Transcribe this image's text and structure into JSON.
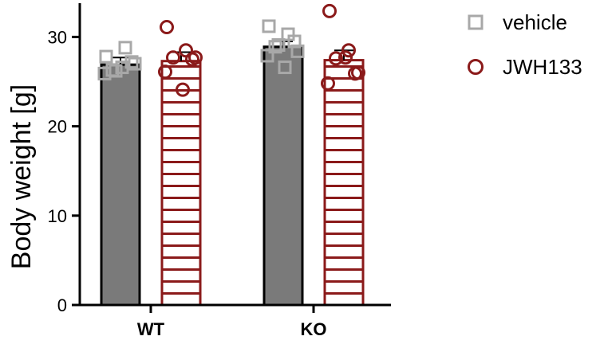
{
  "chart_data": {
    "type": "bar",
    "ylabel": "Body weight [g]",
    "xlabel": "",
    "ylim": [
      0,
      33
    ],
    "yticks": [
      0,
      10,
      20,
      30
    ],
    "categories": [
      "WT",
      "KO"
    ],
    "legend_position": "top-right",
    "series": [
      {
        "name": "vehicle",
        "color": "#7a7a7a",
        "marker_color": "#a8a8a8",
        "marker": "square",
        "fill": "solid",
        "values": [
          26.9,
          28.9
        ],
        "error": [
          0.8,
          0.6
        ],
        "points": [
          [
            27.8,
            28.8,
            26.3,
            27.2,
            25.9,
            26.6,
            27.0,
            26.2
          ],
          [
            31.2,
            30.3,
            28.9,
            29.5,
            27.9,
            26.6,
            28.4,
            29.1
          ]
        ]
      },
      {
        "name": "JWH133",
        "color": "#8b1a1a",
        "marker_color": "#8b1a1a",
        "marker": "circle",
        "fill": "horizontal-stripes",
        "values": [
          27.3,
          27.4
        ],
        "error": [
          1.0,
          1.1
        ],
        "points": [
          [
            31.1,
            28.5,
            27.7,
            27.5,
            26.1,
            24.1,
            27.7
          ],
          [
            32.9,
            28.5,
            27.6,
            25.9,
            24.8,
            27.7,
            26.0
          ]
        ]
      }
    ]
  }
}
